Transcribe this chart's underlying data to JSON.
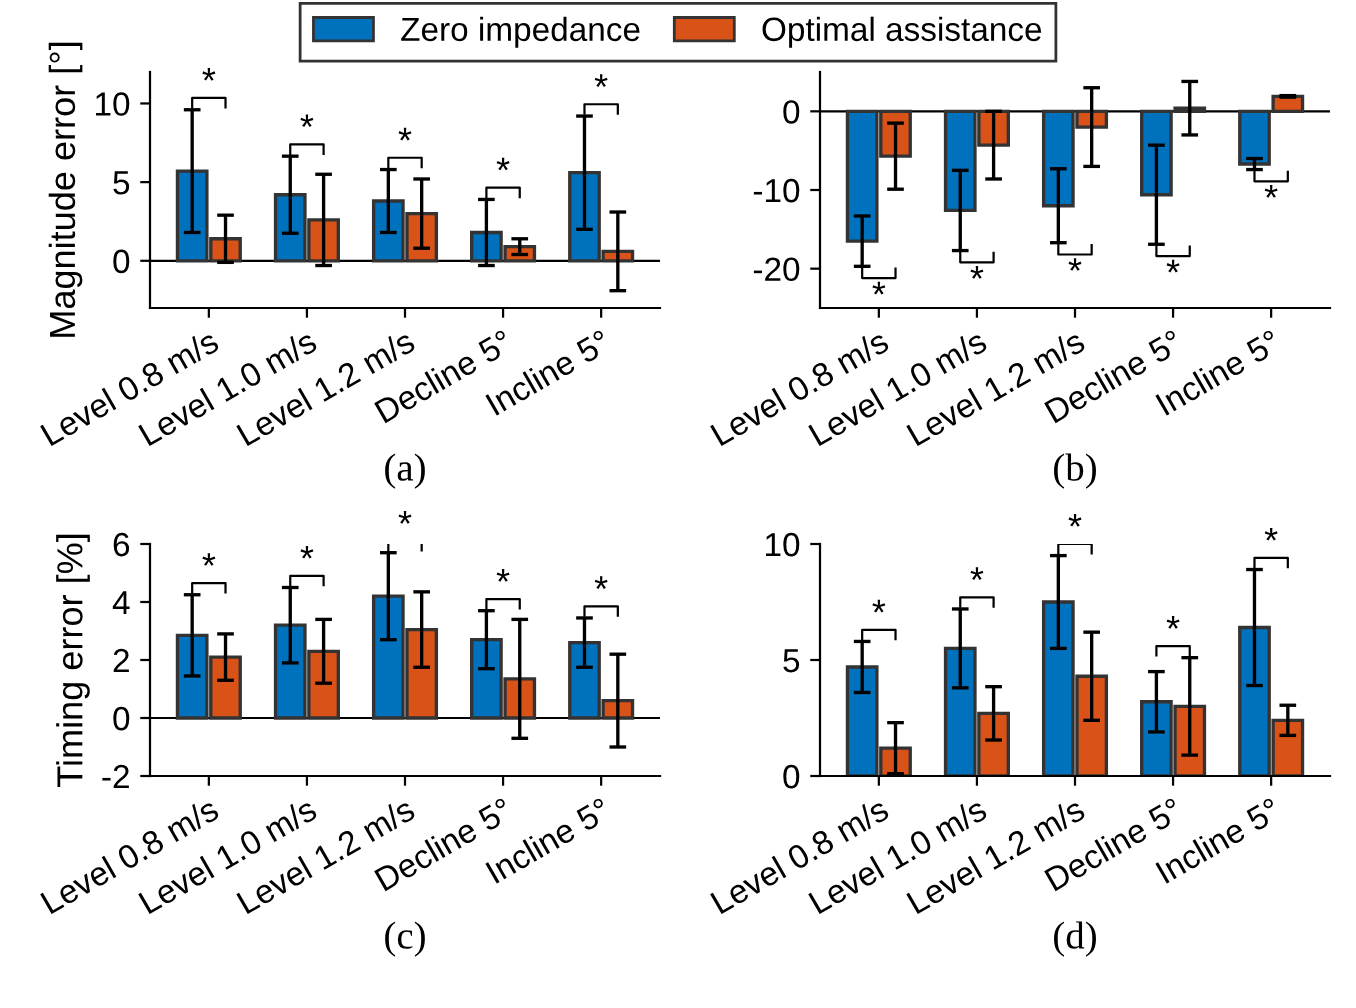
{
  "chart_data": [
    {
      "type": "bar",
      "ylabel": "Magnitude error [°]",
      "xlabel": "(a)",
      "categories": [
        "Level 0.8 m/s",
        "Level 1.0 m/s",
        "Level 1.2 m/s",
        "Decline 5°",
        "Incline 5°"
      ],
      "ylim": [
        -3,
        12
      ],
      "yticks": [
        0,
        5,
        10
      ],
      "grid": false,
      "legend": "top",
      "ref_lines": [
        {
          "axis": "y",
          "value": 0
        }
      ],
      "series": [
        {
          "name": "Zero impedance",
          "color": "#0072bd",
          "values": [
            5.7,
            4.2,
            3.8,
            1.8,
            5.6
          ],
          "errors": [
            3.9,
            2.45,
            2.0,
            2.1,
            3.6
          ]
        },
        {
          "name": "Optimal assistance",
          "color": "#d95319",
          "values": [
            1.4,
            2.6,
            3.0,
            0.9,
            0.6
          ],
          "errors": [
            1.5,
            2.9,
            2.2,
            0.5,
            2.5
          ]
        }
      ],
      "annotations": [
        "*",
        "*",
        "*",
        "*",
        "*"
      ]
    },
    {
      "type": "bar",
      "xlabel": "(b)",
      "categories": [
        "Level 0.8 m/s",
        "Level 1.0 m/s",
        "Level 1.2 m/s",
        "Decline 5°",
        "Incline 5°"
      ],
      "ylim": [
        -25,
        5
      ],
      "yticks": [
        -20,
        -10,
        0
      ],
      "grid": false,
      "ref_lines": [
        {
          "axis": "y",
          "value": 0
        }
      ],
      "series": [
        {
          "color": "#0072bd",
          "values": [
            -16.5,
            -12.6,
            -12.0,
            -10.6,
            -6.7
          ],
          "errors": [
            3.2,
            5.1,
            4.7,
            6.3,
            0.7
          ]
        },
        {
          "color": "#d95319",
          "values": [
            -5.7,
            -4.3,
            -2.0,
            0.4,
            1.9
          ],
          "errors": [
            4.2,
            4.3,
            5.0,
            3.4,
            0.1
          ]
        }
      ],
      "annotations": [
        "*",
        "*",
        "*",
        "*",
        "*"
      ]
    },
    {
      "type": "bar",
      "ylabel": "Timing error [%]",
      "xlabel": "(c)",
      "categories": [
        "Level 0.8 m/s",
        "Level 1.0 m/s",
        "Level 1.2 m/s",
        "Decline 5°",
        "Incline 5°"
      ],
      "ylim": [
        -2,
        6
      ],
      "yticks": [
        -2,
        0,
        2,
        4,
        6
      ],
      "grid": false,
      "ref_lines": [
        {
          "axis": "y",
          "value": 0
        }
      ],
      "series": [
        {
          "color": "#0072bd",
          "values": [
            2.85,
            3.2,
            4.2,
            2.7,
            2.6
          ],
          "errors": [
            1.4,
            1.3,
            1.5,
            1.0,
            0.85
          ]
        },
        {
          "color": "#d95319",
          "values": [
            2.1,
            2.3,
            3.05,
            1.35,
            0.6
          ],
          "errors": [
            0.8,
            1.1,
            1.3,
            2.05,
            1.6
          ]
        }
      ],
      "annotations": [
        "*",
        "*",
        "*",
        "*",
        "*"
      ]
    },
    {
      "type": "bar",
      "xlabel": "(d)",
      "categories": [
        "Level 0.8 m/s",
        "Level 1.0 m/s",
        "Level 1.2 m/s",
        "Decline 5°",
        "Incline 5°"
      ],
      "ylim": [
        0,
        10
      ],
      "yticks": [
        0,
        5,
        10
      ],
      "grid": false,
      "series": [
        {
          "color": "#0072bd",
          "values": [
            4.7,
            5.5,
            7.5,
            3.2,
            6.4
          ],
          "errors": [
            1.1,
            1.7,
            2.0,
            1.3,
            2.5
          ]
        },
        {
          "color": "#d95319",
          "values": [
            1.2,
            2.7,
            4.3,
            3.0,
            2.4
          ],
          "errors": [
            1.1,
            1.15,
            1.9,
            2.1,
            0.65
          ]
        }
      ],
      "annotations": [
        "*",
        "*",
        "*",
        "*",
        "*"
      ]
    }
  ]
}
